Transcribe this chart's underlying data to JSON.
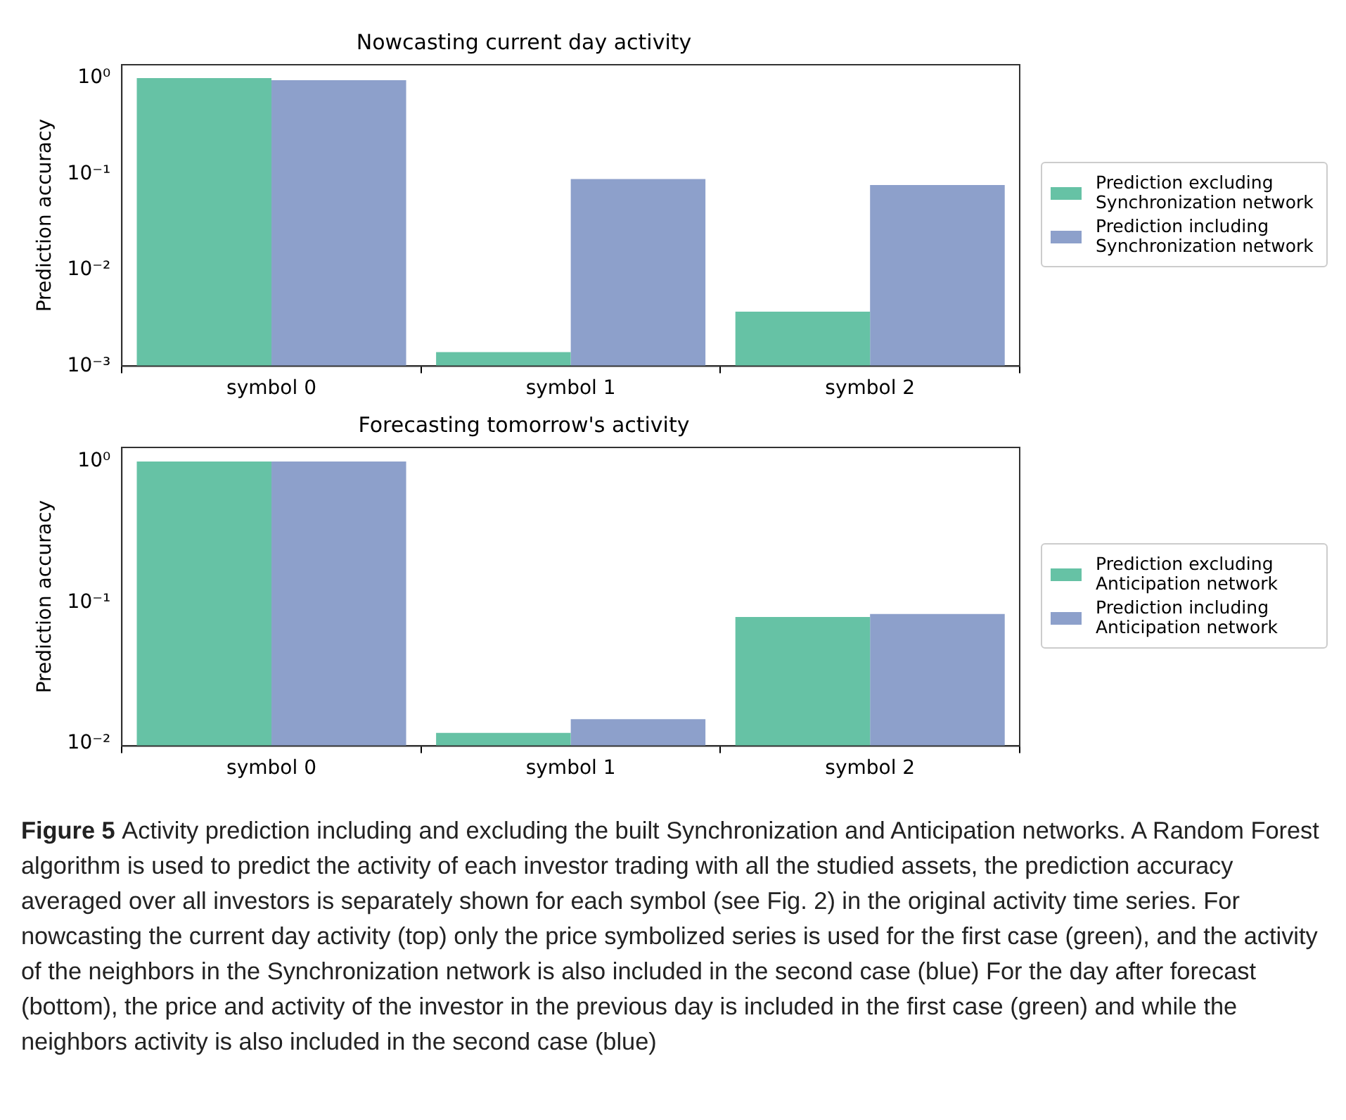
{
  "chart_data": [
    {
      "type": "bar",
      "title": "Nowcasting current day activity",
      "ylabel": "Prediction accuracy",
      "categories": [
        "symbol 0",
        "symbol 1",
        "symbol 2"
      ],
      "series": [
        {
          "name": "Prediction excluding Synchronization network",
          "color": "#66c2a5",
          "values": [
            1.0,
            0.0014,
            0.0037
          ]
        },
        {
          "name": "Prediction including Synchronization network",
          "color": "#8da0cb",
          "values": [
            0.95,
            0.089,
            0.077
          ]
        }
      ],
      "log": "y",
      "ylim": [
        0.001,
        1.38
      ],
      "yticks": [
        {
          "value": 0.001,
          "label": "10⁻³"
        },
        {
          "value": 0.01,
          "label": "10⁻²"
        },
        {
          "value": 0.1,
          "label": "10⁻¹"
        },
        {
          "value": 1,
          "label": "10⁰"
        }
      ],
      "grid": false,
      "legend": "right"
    },
    {
      "type": "bar",
      "title": "Forecasting tomorrow's activity",
      "ylabel": "Prediction accuracy",
      "categories": [
        "symbol 0",
        "symbol 1",
        "symbol 2"
      ],
      "series": [
        {
          "name": "Prediction excluding Anticipation network",
          "color": "#66c2a5",
          "values": [
            1.0,
            0.0119,
            0.079
          ]
        },
        {
          "name": "Prediction including Anticipation network",
          "color": "#8da0cb",
          "values": [
            1.0,
            0.0149,
            0.083
          ]
        }
      ],
      "log": "y",
      "ylim": [
        0.0096,
        1.26
      ],
      "yticks": [
        {
          "value": 0.01,
          "label": "10⁻²"
        },
        {
          "value": 0.1,
          "label": "10⁻¹"
        },
        {
          "value": 1,
          "label": "10⁰"
        }
      ],
      "grid": false,
      "legend": "right",
      "annotations": [
        "Figure 5",
        "Activity prediction including and excluding the built Synchronization and Anticipation networks. A Random Forest algorithm is used to predict the activity of each investor trading with all the studied assets, the prediction accuracy averaged over all investors is separately shown for each symbol (see Fig. 2) in the original activity time series. For nowcasting the current day activity (top) only the price symbolized series is used for the first case (green), and the activity of the neighbors in the Synchronization network is also included in the second case (blue) For the day after forecast (bottom), the price and activity of the investor in the previous day is included in the first case (green) and while the neighbors activity is also included in the second case (blue)"
      ]
    }
  ]
}
